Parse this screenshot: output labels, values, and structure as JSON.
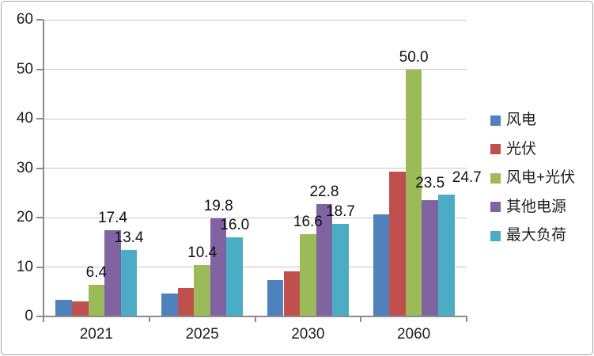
{
  "chart_data": {
    "type": "bar",
    "title": "",
    "xlabel": "",
    "ylabel": "",
    "categories": [
      "2021",
      "2025",
      "2030",
      "2060"
    ],
    "series": [
      {
        "name": "风电",
        "color": "#4F81BD",
        "values": [
          3.4,
          4.7,
          7.4,
          20.7
        ],
        "labels": null
      },
      {
        "name": "光伏",
        "color": "#C0504D",
        "values": [
          3.0,
          5.7,
          9.2,
          29.3
        ],
        "labels": null
      },
      {
        "name": "风电+光伏",
        "color": "#9BBB59",
        "values": [
          6.4,
          10.4,
          16.6,
          50.0
        ],
        "labels": [
          "6.4",
          "10.4",
          "16.6",
          "50.0"
        ]
      },
      {
        "name": "其他电源",
        "color": "#8064A2",
        "values": [
          17.4,
          19.8,
          22.8,
          23.5
        ],
        "labels": [
          "17.4",
          "19.8",
          "22.8",
          "23.5"
        ]
      },
      {
        "name": "最大负荷",
        "color": "#4BACC6",
        "values": [
          13.4,
          16.0,
          18.7,
          24.7
        ],
        "labels": [
          "13.4",
          "16.0",
          "18.7",
          "24.7"
        ]
      }
    ],
    "y_axis": {
      "min": 0,
      "max": 60,
      "step": 10,
      "tick_labels": [
        "0",
        "10",
        "20",
        "30",
        "40",
        "50",
        "60"
      ]
    },
    "legend": {
      "position": "right"
    },
    "grid": true,
    "colors": {
      "gridline": "#c6c6c6",
      "axis": "#8c8c8c",
      "text": "#1f1f1f",
      "frame": "#a6a6a6",
      "background": "#ffffff"
    }
  }
}
